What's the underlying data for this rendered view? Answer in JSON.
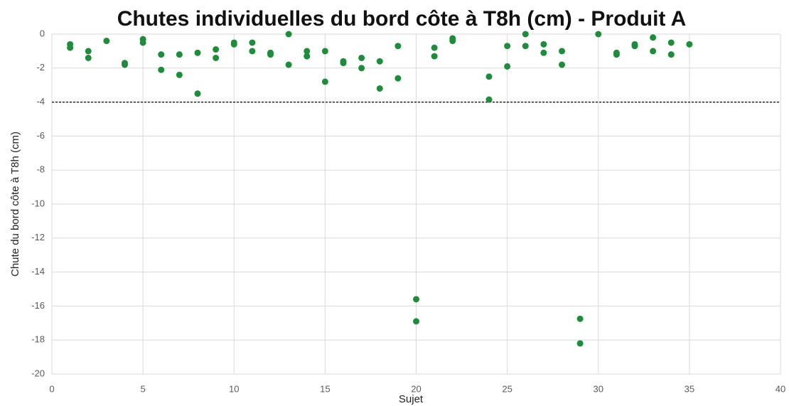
{
  "chart_data": {
    "type": "scatter",
    "title": "Chutes individuelles du bord côte à T8h (cm) - Produit A",
    "xlabel": "Sujet",
    "ylabel": "Chute du bord côte à T8h (cm)",
    "x": [
      1,
      1,
      2,
      2,
      3,
      4,
      4,
      5,
      5,
      6,
      6,
      7,
      7,
      8,
      8,
      9,
      9,
      10,
      10,
      11,
      11,
      12,
      12,
      13,
      13,
      14,
      14,
      15,
      15,
      16,
      16,
      17,
      17,
      18,
      18,
      19,
      19,
      20,
      20,
      21,
      21,
      22,
      22,
      24,
      24,
      25,
      25,
      26,
      26,
      27,
      27,
      28,
      28,
      29,
      29,
      30,
      31,
      31,
      32,
      32,
      33,
      33,
      34,
      34,
      35
    ],
    "values": [
      -0.6,
      -0.8,
      -1.0,
      -1.4,
      -0.4,
      -1.7,
      -1.8,
      -0.3,
      -0.5,
      -1.2,
      -2.1,
      -1.2,
      -2.4,
      -1.1,
      -3.5,
      -0.9,
      -1.4,
      -0.5,
      -0.6,
      -0.5,
      -1.0,
      -1.1,
      -1.2,
      0,
      -1.8,
      -1.0,
      -1.3,
      -1.0,
      -2.8,
      -1.6,
      -1.7,
      -1.4,
      -2.0,
      -1.6,
      -3.2,
      -0.7,
      -2.6,
      -15.6,
      -16.9,
      -0.8,
      -1.3,
      -0.25,
      -0.4,
      -2.5,
      -3.85,
      -0.7,
      -1.9,
      0,
      -0.7,
      -0.6,
      -1.1,
      -1.0,
      -1.8,
      -16.75,
      -18.2,
      0,
      -1.1,
      -1.2,
      -0.6,
      -0.7,
      -0.2,
      -1.0,
      -0.5,
      -1.2,
      -0.6
    ],
    "color": "#1e8c3a",
    "threshold": -4,
    "xlim": [
      0,
      40
    ],
    "xticks": [
      0,
      5,
      10,
      15,
      20,
      25,
      30,
      35,
      40
    ],
    "ylim": [
      -20,
      0
    ],
    "yticks": [
      0,
      -2,
      -4,
      -6,
      -8,
      -10,
      -12,
      -14,
      -16,
      -18,
      -20
    ],
    "grid": true
  }
}
